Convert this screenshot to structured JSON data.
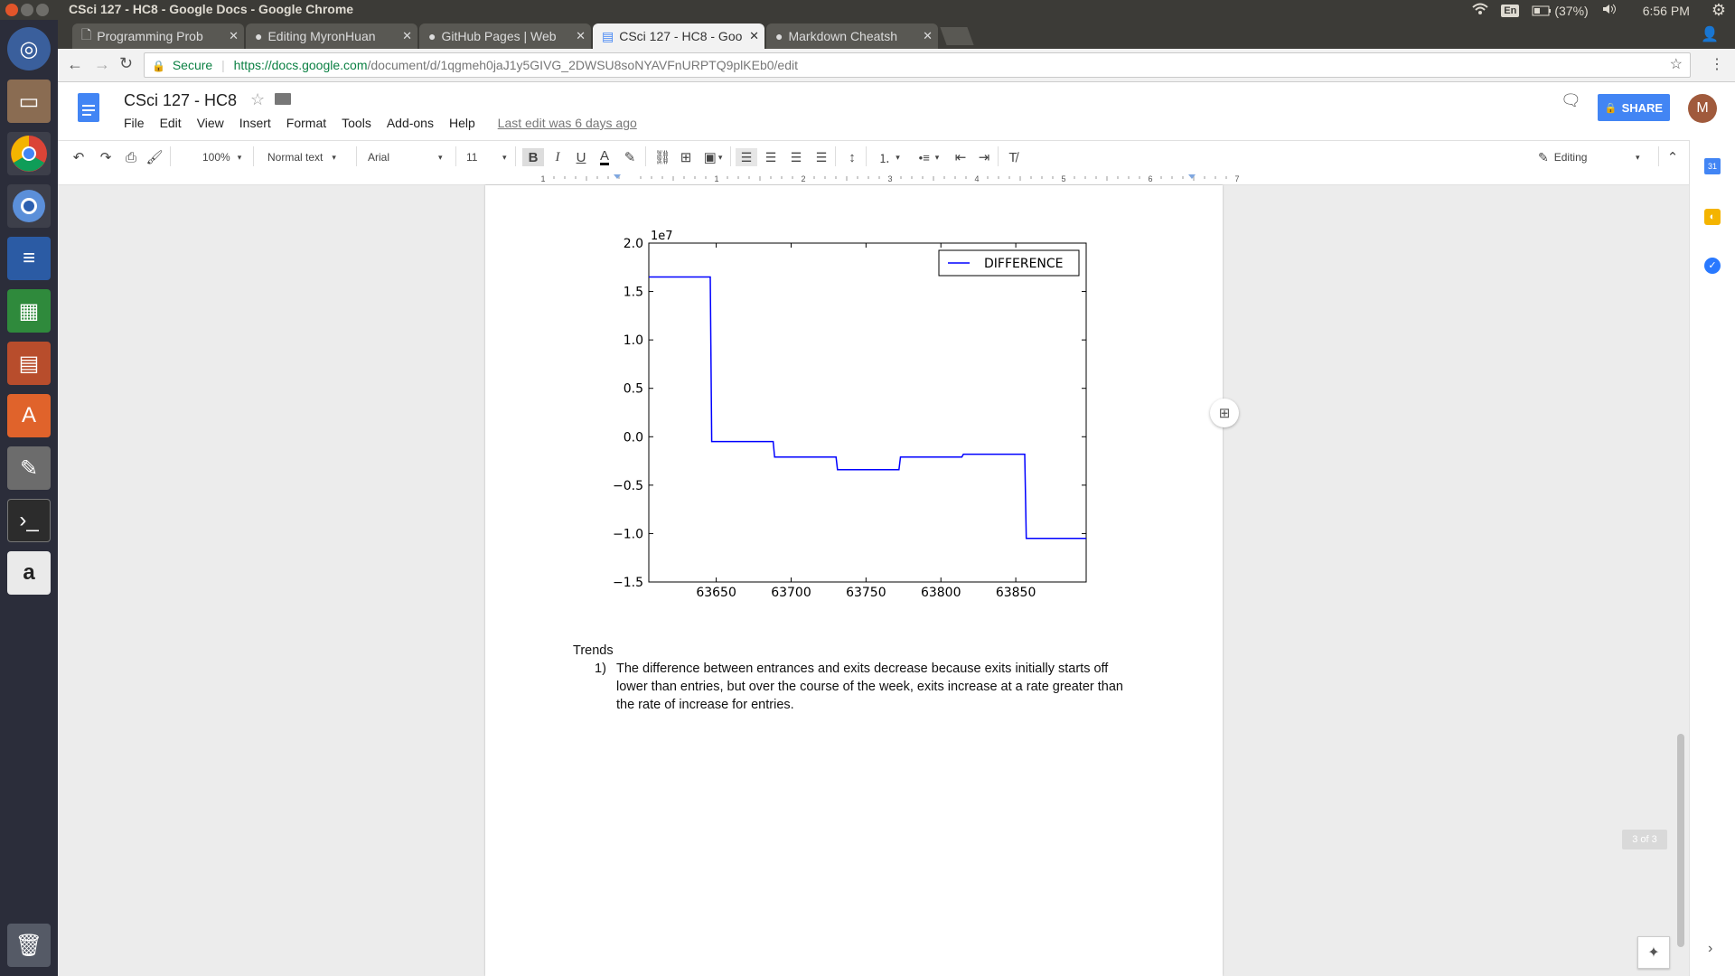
{
  "os": {
    "window_title": "CSci 127 - HC8 - Google Docs - Google Chrome",
    "keyboard": "En",
    "battery": "(37%)",
    "clock": "6:56 PM"
  },
  "tabs": [
    {
      "label": "Programming Prob",
      "icon": "page-icon"
    },
    {
      "label": "Editing MyronHuan",
      "icon": "github-icon"
    },
    {
      "label": "GitHub Pages | Web",
      "icon": "github-icon"
    },
    {
      "label": "CSci 127 - HC8 - Goo",
      "icon": "docs-icon",
      "active": true
    },
    {
      "label": "Markdown Cheatsh",
      "icon": "github-icon"
    }
  ],
  "address": {
    "secure_label": "Secure",
    "url_host": "https://docs.google.com",
    "url_path": "/document/d/1qgmeh0jaJ1y5GIVG_2DWSU8soNYAVFnURPTQ9plKEb0/edit"
  },
  "docs": {
    "title": "CSci 127 - HC8",
    "menu": [
      "File",
      "Edit",
      "View",
      "Insert",
      "Format",
      "Tools",
      "Add-ons",
      "Help"
    ],
    "last_edit": "Last edit was 6 days ago",
    "share_label": "SHARE",
    "avatar_letter": "M"
  },
  "toolbar": {
    "zoom": "100%",
    "style": "Normal text",
    "font": "Arial",
    "size": "11",
    "mode": "Editing"
  },
  "ruler_numbers": [
    "1",
    "1",
    "2",
    "3",
    "4",
    "5",
    "6",
    "7"
  ],
  "document": {
    "heading": "Trends",
    "list_marker": "1)",
    "list_item_lines": [
      "The difference between entrances and exits decrease because exits initially starts off",
      "lower than entries, but over the course of the week, exits increase at a rate greater than",
      "the rate of increase for entries."
    ]
  },
  "page_indicator": "3 of 3",
  "chart_data": {
    "type": "line",
    "exponent_label": "1e7",
    "legend": [
      "DIFFERENCE"
    ],
    "legend_position": "top-right",
    "xlim": [
      63605,
      63897
    ],
    "ylim": [
      -1.5,
      2.0
    ],
    "x_ticks": [
      63650,
      63700,
      63750,
      63800,
      63850
    ],
    "y_ticks": [
      2.0,
      1.5,
      1.0,
      0.5,
      0.0,
      -0.5,
      -1.0,
      -1.5
    ],
    "y_tick_labels": [
      "2.0",
      "1.5",
      "1.0",
      "0.5",
      "0.0",
      "−0.5",
      "−1.0",
      "−1.5"
    ],
    "line_color": "#0000ff",
    "series": [
      {
        "name": "DIFFERENCE",
        "x": [
          63605,
          63646,
          63647,
          63688,
          63689,
          63730,
          63731,
          63772,
          63773,
          63814,
          63815,
          63856,
          63857,
          63897
        ],
        "y": [
          1.65,
          1.65,
          -0.05,
          -0.05,
          -0.21,
          -0.21,
          -0.34,
          -0.34,
          -0.21,
          -0.21,
          -0.18,
          -0.18,
          -1.05,
          -1.05
        ]
      }
    ]
  }
}
